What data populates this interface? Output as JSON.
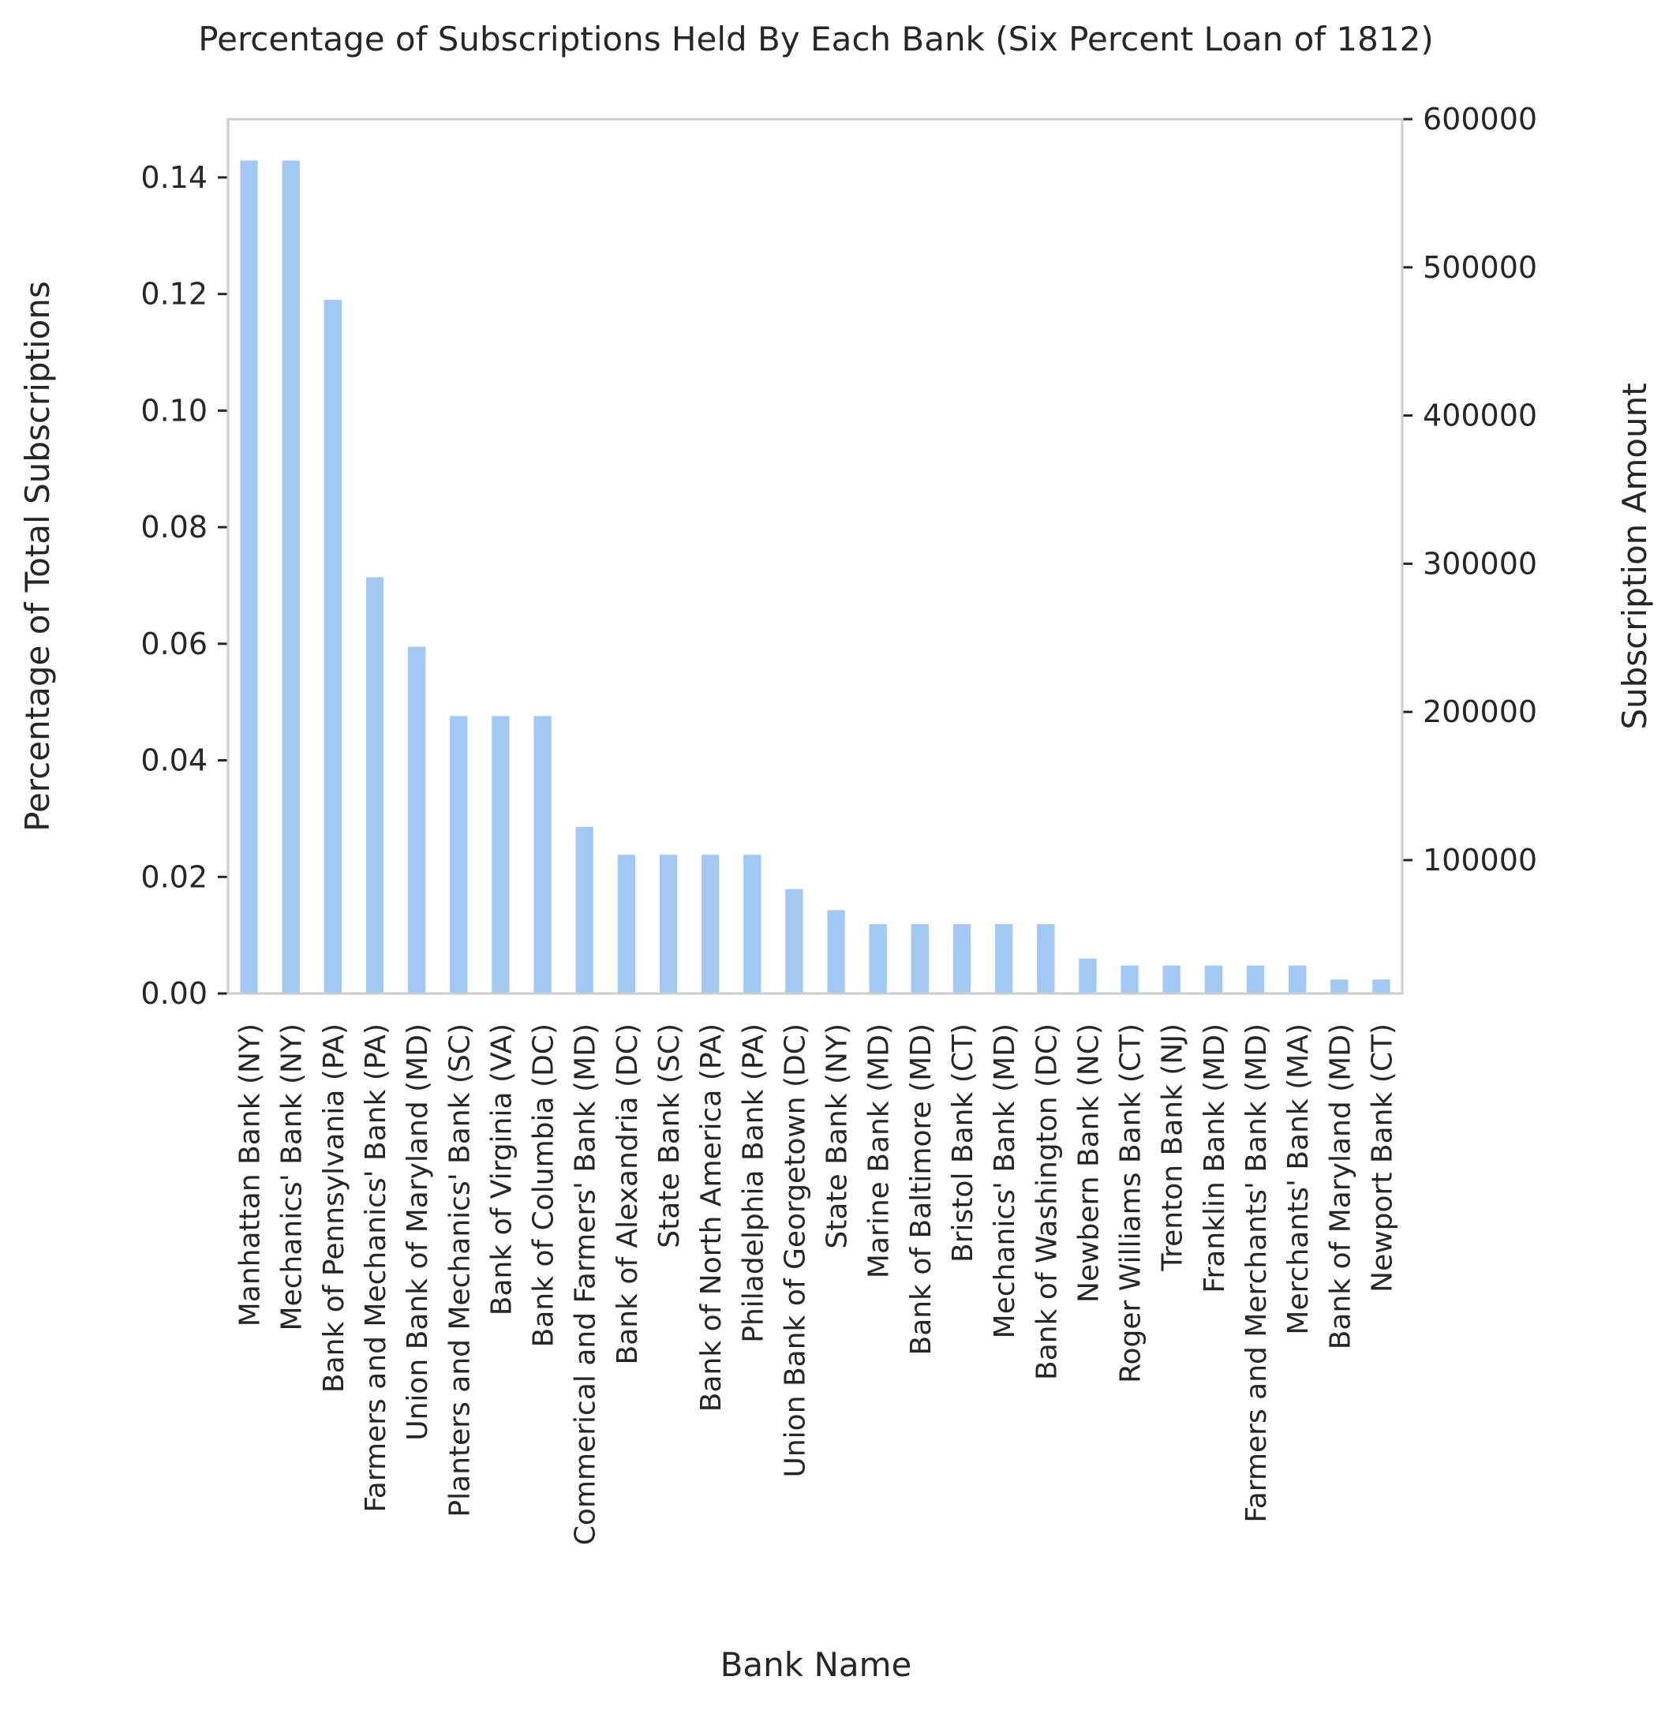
{
  "chart_data": {
    "type": "bar",
    "title": "Percentage of Subscriptions Held By Each Bank (Six Percent Loan of 1812)",
    "xlabel": "Bank Name",
    "ylabel": "Percentage of Total Subscriptions",
    "y2label": "Subscription Amount",
    "ylim": [
      0,
      0.15
    ],
    "y2lim": [
      10000,
      600000
    ],
    "yticks": [
      "0.00",
      "0.02",
      "0.04",
      "0.06",
      "0.08",
      "0.10",
      "0.12",
      "0.14"
    ],
    "y2ticks": [
      "100000",
      "200000",
      "300000",
      "400000",
      "500000",
      "600000"
    ],
    "grid": false,
    "bar_color": "#a1c9f4",
    "categories": [
      "Manhattan Bank (NY)",
      "Mechanics' Bank (NY)",
      "Bank of Pennsylvania (PA)",
      "Farmers and Mechanics' Bank (PA)",
      "Union Bank of Maryland (MD)",
      "Planters and Mechanics' Bank (SC)",
      "Bank of Virginia (VA)",
      "Bank of Columbia (DC)",
      "Commerical and Farmers' Bank (MD)",
      "Bank of Alexandria (DC)",
      "State Bank (SC)",
      "Bank of North America (PA)",
      "Philadelphia Bank (PA)",
      "Union Bank of Georgetown (DC)",
      "State Bank (NY)",
      "Marine Bank (MD)",
      "Bank of Baltimore (MD)",
      "Bristol Bank (CT)",
      "Mechanics' Bank (MD)",
      "Bank of Washington (DC)",
      "Newbern Bank (NC)",
      "Roger Williams Bank (CT)",
      "Trenton Bank (NJ)",
      "Franklin Bank (MD)",
      "Farmers and Merchants' Bank (MD)",
      "Merchants' Bank (MA)",
      "Bank of Maryland (MD)",
      "Newport Bank (CT)"
    ],
    "values": [
      0.1429,
      0.1429,
      0.119,
      0.0714,
      0.0595,
      0.0476,
      0.0476,
      0.0476,
      0.0286,
      0.0238,
      0.0238,
      0.0238,
      0.0238,
      0.0179,
      0.0143,
      0.0119,
      0.0119,
      0.0119,
      0.0119,
      0.0119,
      0.006,
      0.0048,
      0.0048,
      0.0048,
      0.0048,
      0.0048,
      0.0024,
      0.0024
    ]
  }
}
